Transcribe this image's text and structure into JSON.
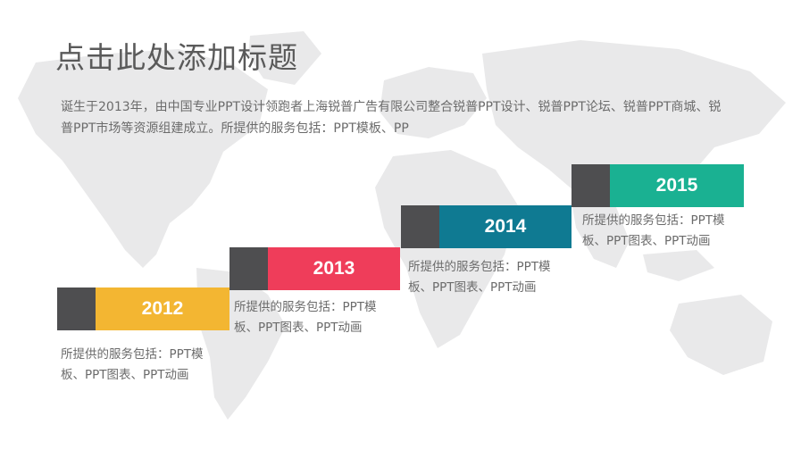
{
  "title": "点击此处添加标题",
  "intro": "诞生于2013年，由中国专业PPT设计领跑者上海锐普广告有限公司整合锐普PPT设计、锐普PPT论坛、锐普PPT商城、锐普PPT市场等资源组建成立。所提供的服务包括：PPT模板、PP",
  "colors": {
    "dark_square": "#4e4e50",
    "y2012": "#f3b632",
    "y2013": "#ef3d5a",
    "y2014": "#0f7a92",
    "y2015": "#1ab192",
    "map": "#e9e9ea"
  },
  "timeline": [
    {
      "year": "2012",
      "desc": "所提供的服务包括：PPT模板、PPT图表、PPT动画"
    },
    {
      "year": "2013",
      "desc": "所提供的服务包括：PPT模板、PPT图表、PPT动画"
    },
    {
      "year": "2014",
      "desc": "所提供的服务包括：PPT模板、PPT图表、PPT动画"
    },
    {
      "year": "2015",
      "desc": "所提供的服务包括：PPT模板、PPT图表、PPT动画"
    }
  ]
}
